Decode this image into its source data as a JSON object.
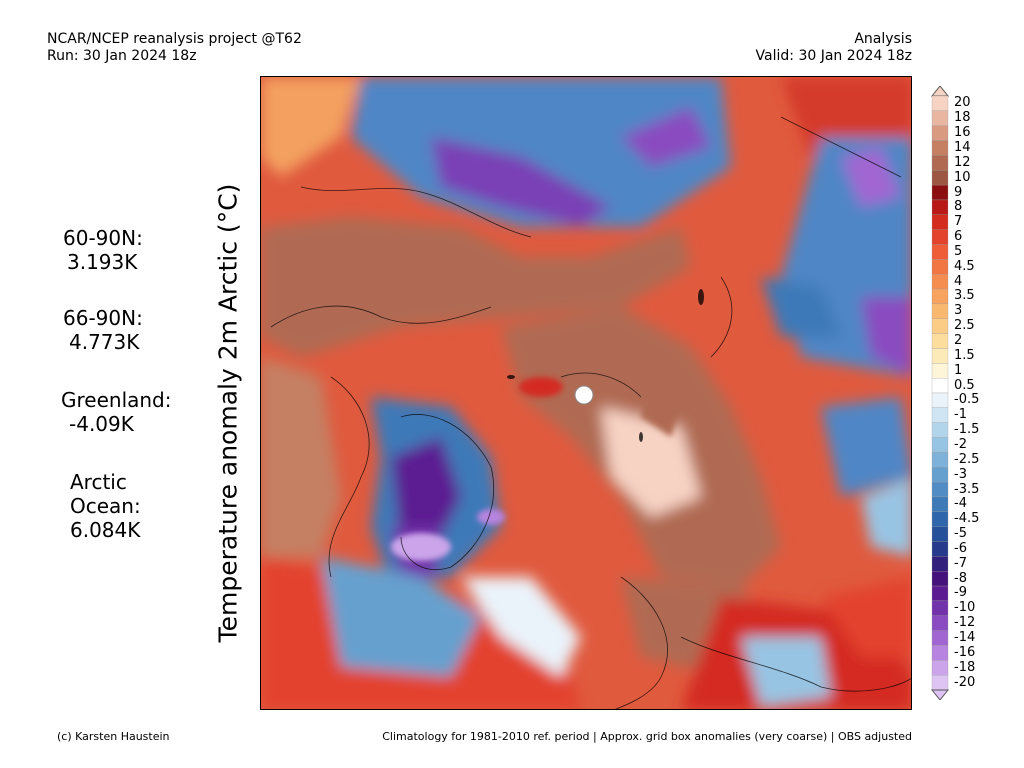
{
  "header": {
    "left_line1": "NCAR/NCEP reanalysis project @T62",
    "left_line2": "Run: 30 Jan 2024 18z",
    "right_line1": "Analysis",
    "right_line2": "Valid: 30 Jan 2024 18z"
  },
  "axis_title": "Temperature anomaly 2m Arctic (°C)",
  "stats": [
    {
      "label": "60-90N:",
      "value": "3.193K"
    },
    {
      "label": "66-90N:",
      "value": "4.773K"
    },
    {
      "label": "Greenland:",
      "value": "-4.09K"
    },
    {
      "label_line1": "Arctic",
      "label_line2": "Ocean:",
      "value": "6.084K"
    }
  ],
  "colorbar": {
    "labels": [
      "20",
      "18",
      "16",
      "14",
      "12",
      "10",
      "9",
      "8",
      "7",
      "6",
      "5",
      "4.5",
      "4",
      "3.5",
      "3",
      "2.5",
      "2",
      "1.5",
      "1",
      "0.5",
      "-0.5",
      "-1",
      "-1.5",
      "-2",
      "-2.5",
      "-3",
      "-3.5",
      "-4",
      "-4.5",
      "-5",
      "-6",
      "-7",
      "-8",
      "-9",
      "-10",
      "-12",
      "-14",
      "-16",
      "-18",
      "-20"
    ],
    "colors": [
      "#f7d3c4",
      "#e9b7a1",
      "#d99a82",
      "#c58064",
      "#b06a52",
      "#9c5742",
      "#8b0f10",
      "#b81818",
      "#d42b21",
      "#e3432d",
      "#ee5c38",
      "#f27544",
      "#f58c50",
      "#f7a25e",
      "#f9b870",
      "#fbcc86",
      "#fcdd9e",
      "#fdeab9",
      "#fef5d8",
      "#ffffff",
      "#eaf3fa",
      "#cfe5f3",
      "#b3d5ec",
      "#98c4e3",
      "#7eb2d9",
      "#66a0cf",
      "#518dc4",
      "#3e79b8",
      "#2f65aa",
      "#27509b",
      "#27398a",
      "#321f7c",
      "#44127a",
      "#5b1c92",
      "#7232aa",
      "#8a4cc0",
      "#a166d2",
      "#b784df",
      "#cba4ea",
      "#ddc4f3"
    ]
  },
  "footer": {
    "credit": "(c) Karsten Haustein",
    "note": "Climatology for 1981-2010 ref. period | Approx. grid box anomalies (very coarse) | OBS adjusted"
  }
}
